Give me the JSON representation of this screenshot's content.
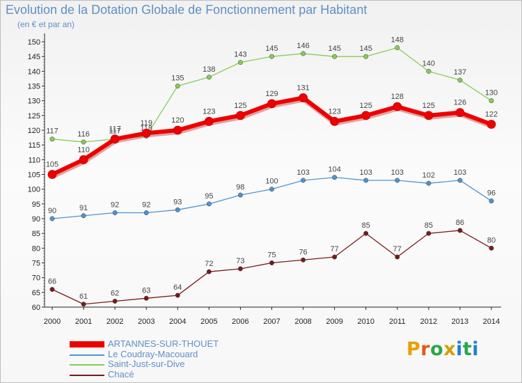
{
  "title": "Evolution de la Dotation Globale de Fonctionnement par Habitant",
  "subtitle": "(en € et par an)",
  "logo": {
    "text": "Proxiti",
    "colors": [
      "#e8a000",
      "#e05a1a",
      "#2aa64a",
      "#d4a000",
      "#1f7fd0",
      "#2aa64a",
      "#1f7fd0"
    ]
  },
  "chart_data": {
    "type": "line",
    "title": "Evolution de la Dotation Globale de Fonctionnement par Habitant",
    "subtitle": "(en € et par an)",
    "categories": [
      "2000",
      "2001",
      "2002",
      "2003",
      "2004",
      "2005",
      "2006",
      "2007",
      "2008",
      "2009",
      "2010",
      "2011",
      "2012",
      "2013",
      "2014"
    ],
    "ylim": [
      60,
      150
    ],
    "yticks": [
      60,
      65,
      70,
      75,
      80,
      85,
      90,
      95,
      100,
      105,
      110,
      115,
      120,
      125,
      130,
      135,
      140,
      145,
      150
    ],
    "grid": false,
    "legend_position": "bottom-left",
    "series": [
      {
        "name": "Saint-Just-sur-Dive",
        "color": "#88cc55",
        "marker": "#88cc55",
        "values": [
          117,
          116,
          117,
          118,
          135,
          138,
          143,
          145,
          146,
          145,
          145,
          148,
          140,
          137,
          130
        ]
      },
      {
        "name": "Le Coudray-Macouard",
        "color": "#4f94cf",
        "marker": "#4f94cf",
        "values": [
          90,
          91,
          92,
          92,
          93,
          95,
          98,
          100,
          103,
          104,
          103,
          103,
          102,
          103,
          96
        ]
      },
      {
        "name": "Chacé",
        "color": "#7a1a1a",
        "marker": "#7a1a1a",
        "values": [
          66,
          61,
          62,
          63,
          64,
          72,
          73,
          75,
          76,
          77,
          85,
          77,
          85,
          86,
          80
        ]
      },
      {
        "name": "ARTANNES-SUR-THOUET",
        "color": "#ee0000",
        "marker": "#ee0000",
        "values": [
          105,
          110,
          117,
          119,
          120,
          123,
          125,
          129,
          131,
          123,
          125,
          128,
          125,
          126,
          122
        ]
      }
    ]
  },
  "legend": [
    {
      "name": "ARTANNES-SUR-THOUET",
      "color": "#ee0000",
      "thick": true
    },
    {
      "name": "Le Coudray-Macouard",
      "color": "#4f94cf",
      "thick": false
    },
    {
      "name": "Saint-Just-sur-Dive",
      "color": "#88cc55",
      "thick": false
    },
    {
      "name": "Chacé",
      "color": "#7a1a1a",
      "thick": false
    }
  ]
}
